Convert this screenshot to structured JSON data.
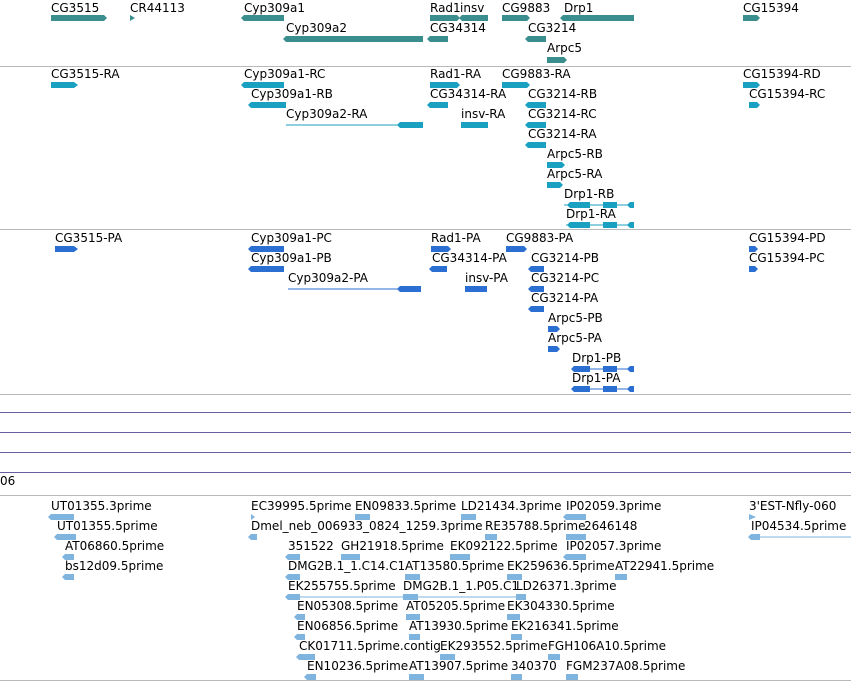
{
  "colors": {
    "gene": "#3a8e8e",
    "transcript": "#1aa0c0",
    "protein": "#2b6fd2",
    "est": "#7fb4df",
    "separator": "#b9b9b9",
    "empty_track_line": "#6a5f9c"
  },
  "gene_track": {
    "labels": [
      "CG3515",
      "CR44113",
      "Cyp309a1",
      "Rad1",
      "insv",
      "CG9883",
      "Drp1",
      "CG15394",
      "Cyp309a2",
      "CG34314",
      "CG3214",
      "Arpc5"
    ]
  },
  "transcript_track": {
    "labels": [
      "CG3515-RA",
      "Cyp309a1-RC",
      "Rad1-RA",
      "CG9883-RA",
      "CG15394-RD",
      "Cyp309a1-RB",
      "CG34314-RA",
      "CG3214-RB",
      "CG15394-RC",
      "Cyp309a2-RA",
      "insv-RA",
      "CG3214-RC",
      "CG3214-RA",
      "Arpc5-RB",
      "Arpc5-RA",
      "Drp1-RB",
      "Drp1-RA"
    ]
  },
  "protein_track": {
    "labels": [
      "CG3515-PA",
      "Cyp309a1-PC",
      "Rad1-PA",
      "CG9883-PA",
      "CG15394-PD",
      "Cyp309a1-PB",
      "CG34314-PA",
      "CG3214-PB",
      "CG15394-PC",
      "Cyp309a2-PA",
      "insv-PA",
      "CG3214-PC",
      "CG3214-PA",
      "Arpc5-PB",
      "Arpc5-PA",
      "Drp1-PB",
      "Drp1-PA"
    ]
  },
  "partial_label": "06",
  "est_track": {
    "labels": [
      "UT01355.3prime",
      "EC39995.5prime",
      "EN09833.5prime",
      "LD21434.3prime",
      "IP02059.3prime",
      "3'EST-Nfly-060",
      "UT01355.5prime",
      "Dmel_neb_006933_0824_1259.3prime",
      "RE35788.5prime",
      "2646148",
      "IP04534.5prime",
      "AT06860.5prime",
      "351522",
      "GH21918.5prime",
      "EK092122.5prime",
      "IP02057.3prime",
      "bs12d09.5prime",
      "DMG2B.1_1.C14.C1",
      "AT13580.5prime",
      "EK259636.5prime",
      "AT22941.5prime",
      "EK255755.5prime",
      "DMG2B.1_1.P05.C1",
      "LD26371.3prime",
      "EN05308.5prime",
      "AT05205.5prime",
      "EK304330.5prime",
      "EN06856.5prime",
      "AT13930.5prime",
      "EK216341.5prime",
      "CK01711.5prime.contig",
      "EK293552.5prime",
      "FGH106A10.5prime",
      "EN10236.5prime",
      "AT13907.5prime",
      "340370",
      "FGM237A08.5prime"
    ]
  }
}
